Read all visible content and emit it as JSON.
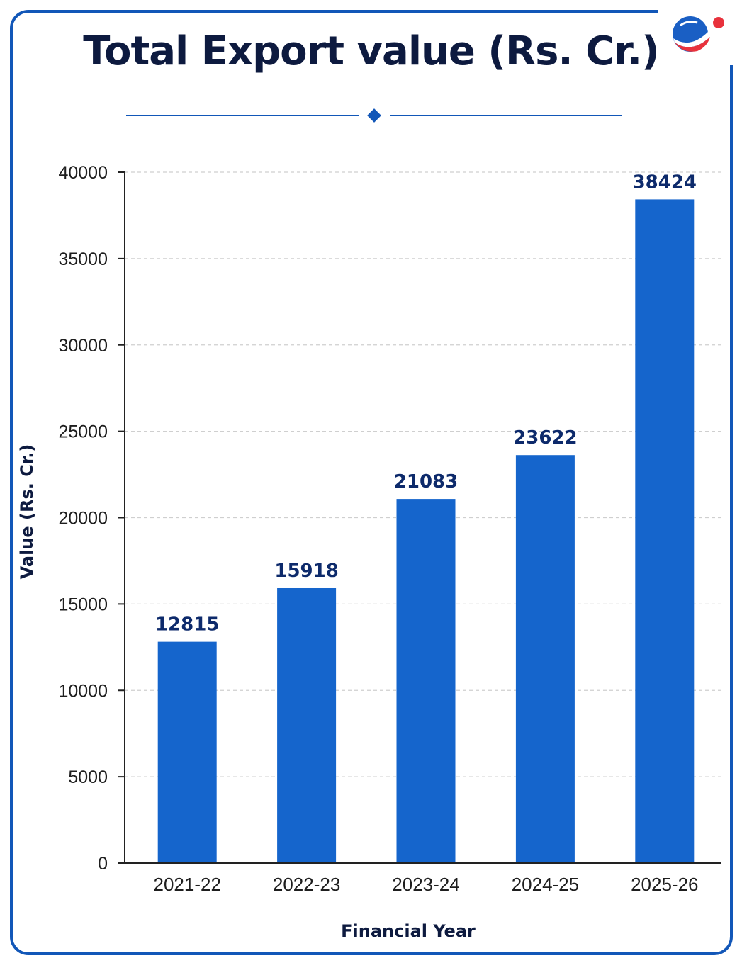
{
  "chart_data": {
    "type": "bar",
    "title": "Total Export value (Rs. Cr.)",
    "xlabel": "Financial Year",
    "ylabel": "Value (Rs. Cr.)",
    "categories": [
      "2021-22",
      "2022-23",
      "2023-24",
      "2024-25",
      "2025-26"
    ],
    "values": [
      12815,
      15918,
      21083,
      23622,
      38424
    ],
    "data_labels": [
      "12815",
      "15918",
      "21083",
      "23622",
      "38424"
    ],
    "ylim": [
      0,
      40000
    ],
    "yticks": [
      0,
      5000,
      10000,
      15000,
      20000,
      25000,
      30000,
      35000,
      40000
    ],
    "ytick_labels": [
      "0",
      "5000",
      "10000",
      "15000",
      "20000",
      "25000",
      "30000",
      "35000",
      "40000"
    ],
    "grid": true,
    "grid_style": "dashed",
    "bar_color": "#1565cc",
    "label_color": "#0d2a6b"
  },
  "branding": {
    "logo_icon": "globe-logo-icon",
    "accent_color": "#1257b8",
    "dot_color": "#e8323c"
  }
}
